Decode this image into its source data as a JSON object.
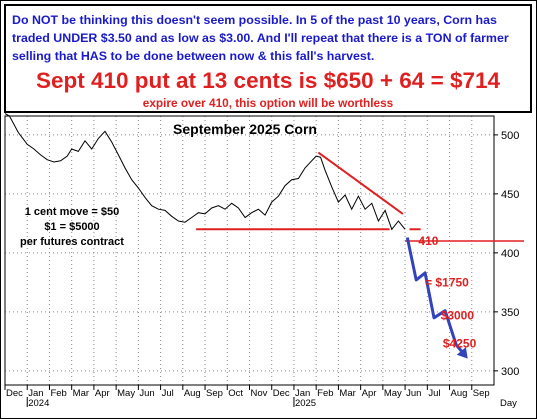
{
  "header": {
    "intro": "Do NOT be thinking this doesn't seem possible. In 5 of the past 10 years, Corn has traded UNDER $3.50 and as low as $3.00. And I'll repeat that there is a TON of farmer selling that HAS to be done between now & this fall's harvest.",
    "headline": "Sept 410 put at 13 cents is $650 + 64 = $714",
    "subline": "expire over 410, this option will be worthless"
  },
  "colors": {
    "accent_blue": "#1a1acc",
    "accent_red": "#e02020",
    "projection_blue": "#3344bb"
  },
  "chart_data": {
    "type": "line",
    "title": "September 2025 Corn",
    "x_axis_months": [
      "Dec",
      "Jan",
      "Feb",
      "Mar",
      "Apr",
      "May",
      "Jun",
      "Jul",
      "Aug",
      "Sep",
      "Oct",
      "Nov",
      "Dec",
      "Jan",
      "Feb",
      "Mar",
      "Apr",
      "May",
      "Jun",
      "Jul",
      "Aug",
      "Sep"
    ],
    "x_axis_years": [
      "2024",
      "2025"
    ],
    "x_axis_unit": "Day",
    "y_ticks": [
      300,
      350,
      400,
      450,
      500
    ],
    "ylim": [
      288,
      516
    ],
    "y_axis_side": "right",
    "grid": true,
    "months_index": [
      0,
      1,
      2,
      3,
      4,
      5,
      6,
      7,
      8,
      9,
      10,
      11,
      12,
      13,
      14,
      15,
      16,
      17,
      18,
      19,
      20,
      21
    ],
    "series": [
      {
        "x_month": [
          0.0,
          0.2,
          0.4,
          0.6,
          0.8,
          1.0,
          1.3,
          1.6,
          1.9,
          2.2,
          2.5,
          2.8,
          3.0,
          3.3,
          3.6,
          3.9,
          4.2,
          4.5,
          4.8,
          5.1,
          5.4,
          5.7,
          6.0,
          6.3,
          6.6,
          6.9,
          7.2,
          7.5,
          7.8,
          8.1,
          8.4,
          8.7,
          9.0,
          9.3,
          9.6,
          9.9,
          10.2,
          10.5,
          10.8,
          11.1,
          11.4,
          11.7,
          12.0,
          12.3,
          12.6,
          12.9,
          13.2,
          13.5,
          13.8,
          14.0,
          14.2,
          14.4,
          14.7,
          15.0,
          15.3,
          15.6,
          15.9,
          16.2,
          16.5,
          16.8,
          17.1,
          17.4,
          17.7,
          18.0
        ],
        "values": [
          518,
          516,
          509,
          502,
          497,
          492,
          488,
          483,
          479,
          477,
          478,
          482,
          488,
          486,
          495,
          488,
          497,
          503,
          494,
          483,
          472,
          462,
          455,
          447,
          440,
          437,
          436,
          431,
          427,
          426,
          430,
          434,
          433,
          438,
          440,
          437,
          442,
          438,
          430,
          434,
          437,
          432,
          443,
          448,
          457,
          462,
          463,
          472,
          478,
          482,
          481,
          470,
          456,
          443,
          449,
          437,
          448,
          437,
          442,
          427,
          436,
          420,
          427,
          420
        ]
      }
    ],
    "annotations": {
      "resistance_line": {
        "x_month": [
          14.1,
          17.9
        ],
        "values": [
          485,
          433
        ]
      },
      "support_line": {
        "x_month": [
          8.6,
          17.3
        ],
        "values": [
          420,
          420
        ]
      },
      "projection_path": {
        "x_month": [
          18.1,
          18.5,
          18.9,
          19.3,
          19.8,
          20.3,
          20.7
        ],
        "values": [
          413,
          377,
          383,
          345,
          351,
          322,
          313
        ]
      },
      "level_marks": [
        {
          "label": "410",
          "value": 410
        },
        {
          "label": "= $1750",
          "value": 375
        },
        {
          "label": "$3000",
          "value": 347
        },
        {
          "label": "$4250",
          "value": 323
        }
      ],
      "note_lines": [
        "1 cent move = $50",
        "$1 = $5000",
        "per futures contract"
      ]
    }
  }
}
